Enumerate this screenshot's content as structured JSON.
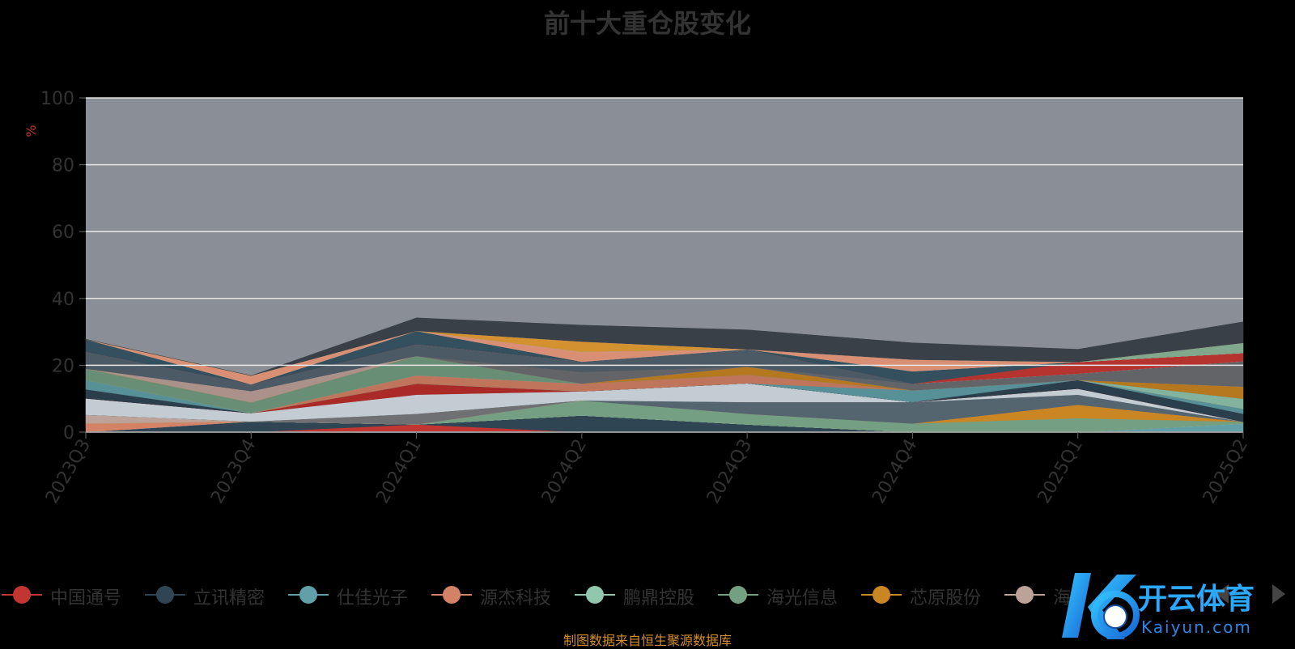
{
  "chart_data": {
    "type": "area",
    "title": "前十大重仓股变化",
    "ylabel": "%",
    "ylim": [
      0,
      100
    ],
    "yticks": [
      0,
      20,
      40,
      60,
      80,
      100
    ],
    "grid": true,
    "legend_position": "bottom",
    "categories": [
      "2023Q3",
      "2023Q4",
      "2024Q1",
      "2024Q2",
      "2024Q3",
      "2024Q4",
      "2025Q1",
      "2025Q2"
    ],
    "series": [
      {
        "name": "中国通号",
        "color": "#c23531",
        "values": [
          0.0,
          0.0,
          2.3,
          0.0,
          0.0,
          0.0,
          0.0,
          0.0
        ]
      },
      {
        "name": "立讯精密",
        "color": "#2f4554",
        "values": [
          0.0,
          3.2,
          0.0,
          5.0,
          2.3,
          0.0,
          0.0,
          0.0
        ]
      },
      {
        "name": "仕佳光子",
        "color": "#61a0a8",
        "values": [
          0.0,
          0.0,
          0.0,
          0.0,
          0.0,
          0.0,
          0.0,
          2.5
        ]
      },
      {
        "name": "源杰科技",
        "color": "#d48265",
        "values": [
          2.6,
          0.0,
          0.0,
          0.0,
          0.0,
          0.0,
          0.0,
          0.0
        ]
      },
      {
        "name": "鹏鼎控股",
        "color": "#91c7ae",
        "values": [
          0.0,
          0.0,
          0.0,
          0.0,
          0.0,
          0.0,
          0.0,
          0.0
        ]
      },
      {
        "name": "海光信息",
        "color": "#749f83",
        "values": [
          0.0,
          0.0,
          0.0,
          4.5,
          3.2,
          2.6,
          4.2,
          0.6
        ]
      },
      {
        "name": "芯原股份",
        "color": "#ca8622",
        "values": [
          0.0,
          0.0,
          0.0,
          0.0,
          0.0,
          0.0,
          4.0,
          0.0
        ]
      },
      {
        "name": "海",
        "color": "#bda29a",
        "values": [
          2.6,
          0.0,
          0.0,
          0.0,
          0.0,
          0.0,
          0.0,
          0.0
        ]
      },
      {
        "name": "",
        "color": "#6e7074",
        "values": [
          0.0,
          0.0,
          3.2,
          0.0,
          0.0,
          0.0,
          0.0,
          0.0
        ]
      },
      {
        "name": "",
        "color": "#546570",
        "values": [
          0.0,
          0.0,
          0.0,
          0.0,
          3.5,
          6.4,
          3.0,
          0.0
        ]
      },
      {
        "name": "",
        "color": "#c4ccd3",
        "values": [
          4.9,
          2.5,
          5.7,
          2.7,
          5.6,
          0.0,
          1.8,
          0.0
        ]
      },
      {
        "name": "",
        "color": "#a92a26",
        "values": [
          0.0,
          0.0,
          3.3,
          0.0,
          0.0,
          0.0,
          0.0,
          0.0
        ]
      },
      {
        "name": "",
        "color": "#2a3e4c",
        "values": [
          2.7,
          0.0,
          0.0,
          0.0,
          0.0,
          0.0,
          2.6,
          2.4
        ]
      },
      {
        "name": "",
        "color": "#579097",
        "values": [
          2.8,
          0.0,
          0.0,
          0.0,
          0.0,
          3.5,
          0.0,
          1.5
        ]
      },
      {
        "name": "",
        "color": "#be755b",
        "values": [
          0.0,
          0.0,
          2.5,
          2.3,
          2.6,
          0.0,
          0.0,
          0.0
        ]
      },
      {
        "name": "",
        "color": "#82b39c",
        "values": [
          0.0,
          0.0,
          0.0,
          0.0,
          0.0,
          0.0,
          0.0,
          3.0
        ]
      },
      {
        "name": "",
        "color": "#688f75",
        "values": [
          3.4,
          3.2,
          5.8,
          0.0,
          0.0,
          0.0,
          0.0,
          0.0
        ]
      },
      {
        "name": "",
        "color": "#b5781f",
        "values": [
          0.0,
          0.0,
          0.0,
          0.0,
          2.4,
          0.0,
          0.0,
          3.6
        ]
      },
      {
        "name": "",
        "color": "#aa9189",
        "values": [
          0.0,
          3.4,
          0.0,
          0.0,
          0.0,
          0.0,
          0.0,
          0.0
        ]
      },
      {
        "name": "",
        "color": "#636468",
        "values": [
          0.0,
          0.0,
          0.0,
          3.5,
          0.0,
          2.0,
          1.9,
          7.6
        ]
      },
      {
        "name": "",
        "color": "#4b5a65",
        "values": [
          5.0,
          2.0,
          3.5,
          3.1,
          5.2,
          0.0,
          0.0,
          0.0
        ]
      },
      {
        "name": "",
        "color": "#b0b7bd",
        "values": [
          0.0,
          0.0,
          0.0,
          0.0,
          0.0,
          0.0,
          0.0,
          0.0
        ]
      },
      {
        "name": "",
        "color": "#b53430",
        "values": [
          0.0,
          0.0,
          0.0,
          0.0,
          0.0,
          0.0,
          3.5,
          2.5
        ]
      },
      {
        "name": "",
        "color": "#34505e",
        "values": [
          3.8,
          0.0,
          4.0,
          0.0,
          0.0,
          3.7,
          0.0,
          0.0
        ]
      },
      {
        "name": "",
        "color": "#68a3a9",
        "values": [
          0.0,
          0.0,
          0.0,
          0.0,
          0.0,
          0.0,
          0.0,
          0.0
        ]
      },
      {
        "name": "",
        "color": "#d88f73",
        "values": [
          0.0,
          2.6,
          0.0,
          3.0,
          0.0,
          3.5,
          0.0,
          0.0
        ]
      },
      {
        "name": "",
        "color": "#9dcbb5",
        "values": [
          0.0,
          0.0,
          0.0,
          0.0,
          0.0,
          0.0,
          0.0,
          0.0
        ]
      },
      {
        "name": "",
        "color": "#81a78d",
        "values": [
          0.0,
          0.0,
          0.0,
          0.0,
          0.0,
          0.0,
          0.0,
          3.0
        ]
      },
      {
        "name": "",
        "color": "#d3912f",
        "values": [
          0.0,
          0.0,
          0.0,
          3.0,
          0.0,
          0.0,
          0.0,
          0.0
        ]
      },
      {
        "name": "",
        "color": "#c5aca4",
        "values": [
          0.0,
          0.0,
          0.0,
          0.0,
          0.0,
          0.0,
          0.0,
          0.0
        ]
      },
      {
        "name": "",
        "color": "#3a4048",
        "values": [
          0.0,
          0.0,
          3.9,
          4.9,
          5.8,
          5.0,
          3.8,
          6.3
        ]
      }
    ]
  },
  "source_note": "制图数据来自恒生聚源数据库",
  "plot_background": "#8a8f97",
  "axis_label_color": "#333333",
  "ylabel_color": "#c23531",
  "watermark": {
    "brand_cn": "开云体育",
    "brand_en": "Kaiyun.com"
  }
}
